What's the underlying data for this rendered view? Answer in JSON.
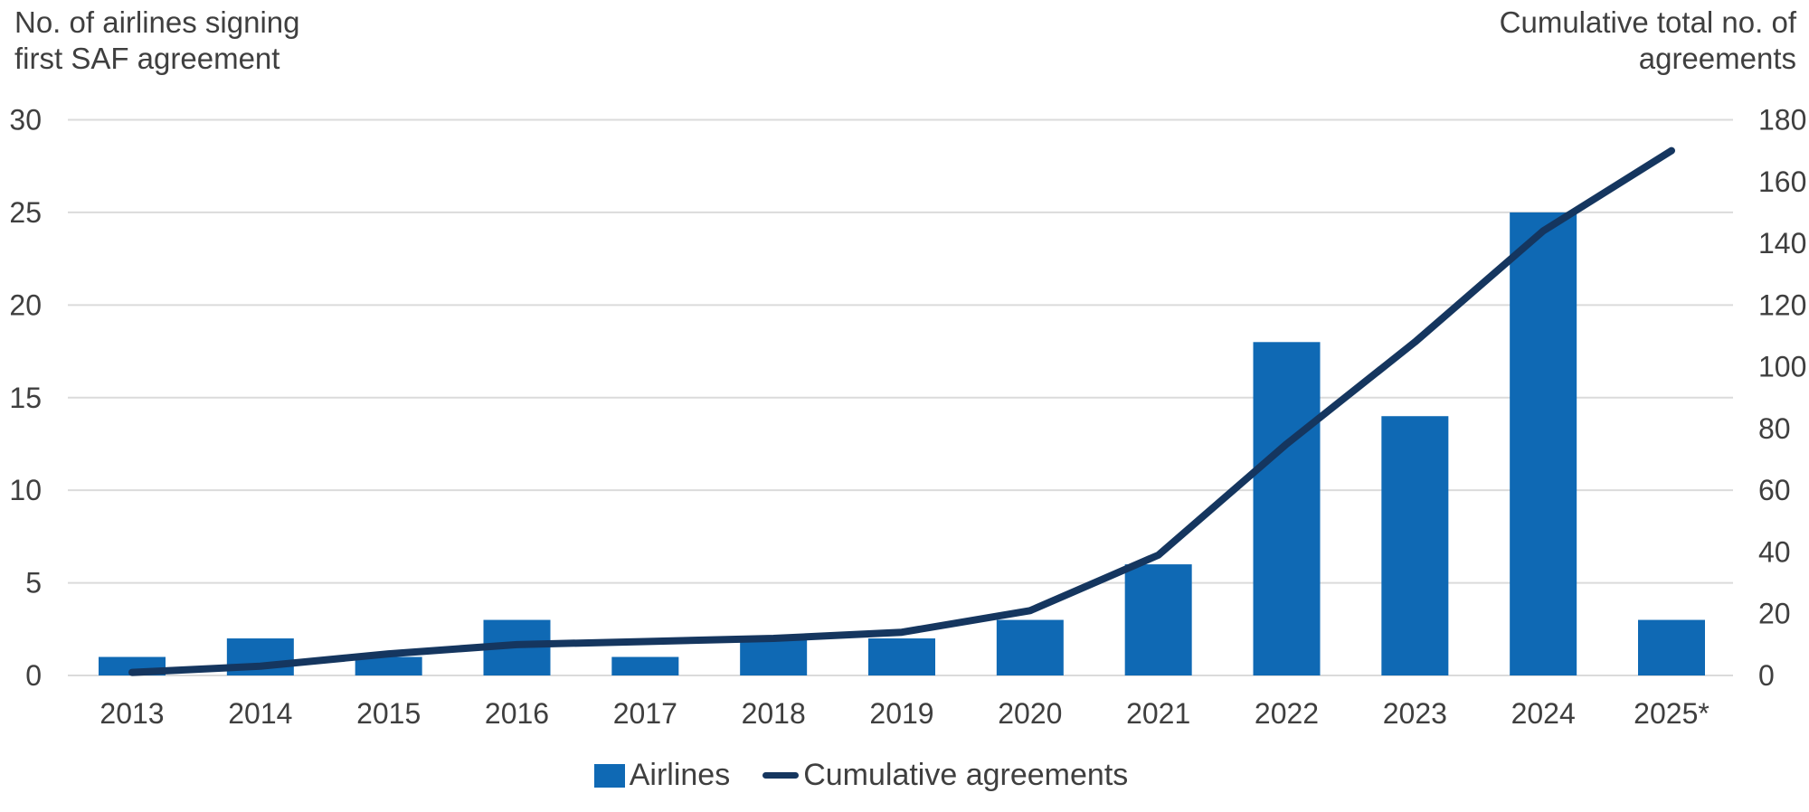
{
  "titles": {
    "left_line1": "No. of airlines signing",
    "left_line2": "first SAF agreement",
    "right_line1": "Cumulative total no. of",
    "right_line2": "agreements"
  },
  "colors": {
    "bar": "#0F69B4",
    "line": "#15365F",
    "text": "#3F3F3F",
    "grid": "#DBDBDB"
  },
  "chart_data": {
    "type": "bar+line",
    "categories": [
      "2013",
      "2014",
      "2015",
      "2016",
      "2017",
      "2018",
      "2019",
      "2020",
      "2021",
      "2022",
      "2023",
      "2024",
      "2025*"
    ],
    "series": [
      {
        "name": "Airlines",
        "type": "bar",
        "axis": "left",
        "values": [
          1,
          2,
          1,
          3,
          1,
          2,
          2,
          3,
          6,
          18,
          14,
          25,
          3
        ]
      },
      {
        "name": "Cumulative agreements",
        "type": "line",
        "axis": "right",
        "values": [
          1,
          3,
          7,
          10,
          11,
          12,
          14,
          21,
          39,
          75,
          108,
          144,
          170
        ]
      }
    ],
    "left_axis": {
      "label": "No. of airlines signing first SAF agreement",
      "ticks": [
        0,
        5,
        10,
        15,
        20,
        25,
        30
      ],
      "range": [
        0,
        30
      ]
    },
    "right_axis": {
      "label": "Cumulative total no. of agreements",
      "ticks": [
        0,
        20,
        40,
        60,
        80,
        100,
        120,
        140,
        160,
        180
      ],
      "range": [
        0,
        180
      ]
    },
    "grid": "horizontal-only",
    "legend_position": "bottom-center"
  }
}
